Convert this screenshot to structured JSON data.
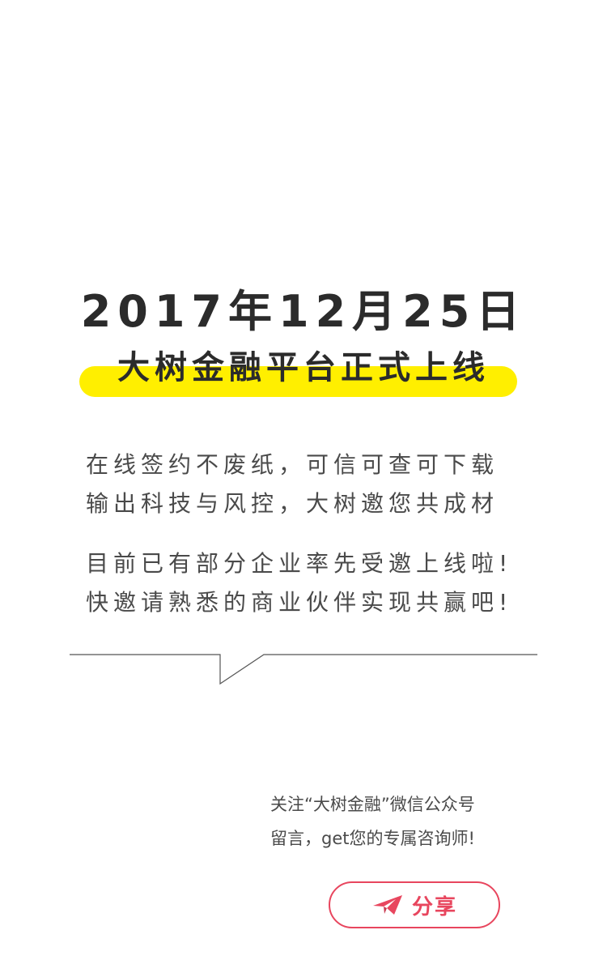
{
  "headline": {
    "date": "2017年12月25日",
    "subtitle": "大树金融平台正式上线"
  },
  "intro": {
    "lines": [
      "在线签约不废纸，可信可查可下载",
      "输出科技与风控，大树邀您共成材"
    ]
  },
  "invite": {
    "lines": [
      "目前已有部分企业率先受邀上线啦!",
      "快邀请熟悉的商业伙伴实现共赢吧!"
    ]
  },
  "footer": {
    "lines": [
      "关注“大树金融”微信公众号",
      "留言，get您的专属咨询师!"
    ]
  },
  "share": {
    "label": "分享",
    "icon": "paper-plane-icon"
  },
  "colors": {
    "highlight": "#ffef00",
    "accent": "#e8465e",
    "text": "#2b2b2b"
  }
}
